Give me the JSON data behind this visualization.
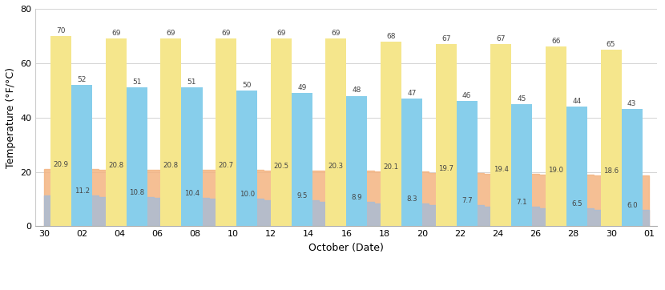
{
  "high_f": [
    70,
    69,
    69,
    69,
    69,
    69,
    68,
    67,
    67,
    66,
    65
  ],
  "low_f": [
    52,
    51,
    51,
    50,
    49,
    48,
    47,
    46,
    45,
    44,
    43
  ],
  "high_c": [
    20.9,
    20.8,
    20.8,
    20.7,
    20.5,
    20.3,
    20.1,
    19.7,
    19.4,
    19.0,
    18.6
  ],
  "low_c": [
    11.2,
    10.8,
    10.4,
    10.0,
    9.5,
    8.9,
    8.3,
    7.7,
    7.1,
    6.5,
    6.0
  ],
  "color_high_f": "#F5E68C",
  "color_low_f": "#87CEEB",
  "color_high_c": "#F4B482",
  "color_low_c": "#AABCD4",
  "xtick_labels": [
    "30",
    "02",
    "04",
    "06",
    "08",
    "10",
    "12",
    "14",
    "16",
    "18",
    "20",
    "22",
    "24",
    "26",
    "28",
    "30",
    "01"
  ],
  "xlabel": "October (Date)",
  "ylabel": "Temperature (°F/°C)",
  "ylim": [
    0,
    80
  ],
  "yticks": [
    0,
    20,
    40,
    60,
    80
  ]
}
